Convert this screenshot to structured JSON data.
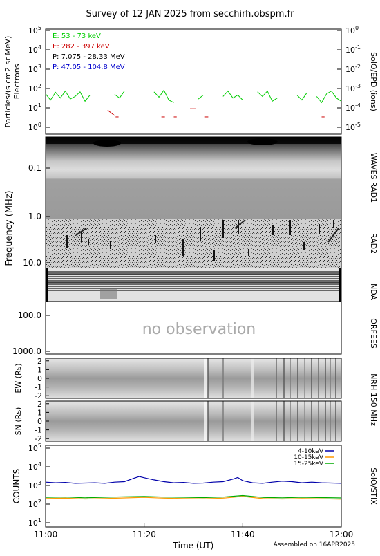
{
  "title": "Survey of 12 JAN 2025 from secchirh.obspm.fr",
  "footer": {
    "xlabel": "Time (UT)",
    "assembled": "Assembled on 16APR2025"
  },
  "x_ticks": [
    "11:00",
    "11:20",
    "11:40",
    "12:00"
  ],
  "colors": {
    "electron_low": "#00cc00",
    "electron_high": "#cc0000",
    "proton_low": "#000000",
    "proton_high": "#0000cc",
    "stix_4_10": "#0000aa",
    "stix_10_15": "#ff9900",
    "stix_15_25": "#00aa00"
  },
  "chart_data": [
    {
      "type": "line",
      "panel": "epd",
      "ylabel_lines": [
        "Particles/(s cm2 sr MeV)",
        "Electrons"
      ],
      "right_label": "SolO/EPD (ions)",
      "y_ticks_left": [
        "10^5",
        "10^4",
        "10^3",
        "10^2",
        "10^1",
        "10^0"
      ],
      "y_ticks_right": [
        "10^0",
        "10^-1",
        "10^-2",
        "10^-3",
        "10^-4",
        "10^-5"
      ],
      "legend": [
        "E: 53 - 73 keV",
        "E: 282 - 397 keV",
        "P: 7.075 - 28.33 MeV",
        "P: 47.05 - 104.8 MeV"
      ],
      "ylim": [
        1,
        100000
      ],
      "scale": "log",
      "series": [
        {
          "name": "E: 53 - 73 keV",
          "x_min": [
            0,
            1,
            2,
            3,
            4,
            5,
            6,
            7,
            8,
            9,
            10,
            11,
            12,
            13,
            14,
            15,
            16,
            17,
            18,
            19,
            20,
            21,
            22,
            23,
            24,
            25,
            26,
            27,
            28,
            29,
            30,
            31,
            32,
            33,
            34,
            35,
            36,
            37,
            38,
            39,
            40,
            41,
            42,
            43,
            44,
            45,
            46,
            47,
            48,
            49,
            50,
            51,
            52,
            53,
            54,
            55,
            56,
            57,
            58,
            59,
            60
          ],
          "values": [
            80,
            40,
            95,
            50,
            110,
            45,
            60,
            100,
            35,
            70,
            null,
            null,
            60,
            null,
            75,
            50,
            110,
            null,
            null,
            null,
            null,
            null,
            100,
            55,
            120,
            40,
            30,
            null,
            null,
            60,
            null,
            45,
            70,
            null,
            null,
            null,
            60,
            110,
            50,
            70,
            40,
            null,
            null,
            100,
            60,
            110,
            35,
            50,
            null,
            null,
            null,
            70,
            40,
            90,
            null,
            60,
            30,
            80,
            110,
            50,
            35
          ]
        },
        {
          "name": "E: 282 - 397 keV",
          "segments": [
            [
              12.6,
              14,
              12.7,
              7
            ],
            [
              14.2,
              14.8,
              6,
              6
            ],
            [
              23.5,
              24.2,
              6,
              6
            ],
            [
              26,
              26.6,
              6,
              6
            ],
            [
              29.3,
              30.5,
              15,
              15
            ],
            [
              32.2,
              33,
              6,
              6
            ],
            [
              56,
              56.6,
              6,
              6
            ]
          ]
        }
      ]
    },
    {
      "type": "heatmap",
      "panel": "radio",
      "ylabel": "Frequency (MHz)",
      "y_ticks": [
        "0.1",
        "1.0",
        "10.0",
        "100.0",
        "1000.0"
      ],
      "scale": "log",
      "right_labels": [
        "WAVES RAD1",
        "RAD2",
        "NDA",
        "ORFEES"
      ],
      "annotation": "no observation"
    },
    {
      "type": "heatmap",
      "panel": "nrh_ew",
      "ylabel": "EW (Rs)",
      "y_ticks": [
        "2",
        "1",
        "0",
        "-1",
        "-2"
      ],
      "ylim": [
        -2.3,
        2.3
      ],
      "right_label": "NRH 150 MHz"
    },
    {
      "type": "heatmap",
      "panel": "nrh_sn",
      "ylabel": "SN (Rs)",
      "y_ticks": [
        "2",
        "1",
        "0",
        "-1",
        "-2"
      ],
      "ylim": [
        -2.3,
        2.3
      ]
    },
    {
      "type": "line",
      "panel": "stix",
      "ylabel": "COUNTS",
      "right_label": "SolO/STIX",
      "y_ticks": [
        "10^5",
        "10^4",
        "10^3",
        "10^2",
        "10^1"
      ],
      "ylim": [
        10,
        100000
      ],
      "scale": "log",
      "legend": [
        "4-10keV",
        "10-15keV",
        "15-25keV"
      ],
      "series": [
        {
          "name": "4-10keV",
          "x_min": [
            0,
            2,
            4,
            6,
            8,
            10,
            12,
            14,
            16,
            18,
            19,
            20,
            22,
            24,
            26,
            28,
            30,
            32,
            34,
            36,
            38,
            39,
            40,
            42,
            44,
            46,
            48,
            50,
            52,
            54,
            56,
            58,
            60
          ],
          "values": [
            1500,
            1400,
            1450,
            1300,
            1350,
            1400,
            1300,
            1500,
            1600,
            2500,
            3000,
            2600,
            2000,
            1600,
            1400,
            1450,
            1300,
            1350,
            1500,
            1600,
            2200,
            2700,
            1800,
            1400,
            1300,
            1500,
            1700,
            1600,
            1400,
            1500,
            1400,
            1350,
            1300
          ]
        },
        {
          "name": "10-15keV",
          "x_min": [
            0,
            4,
            8,
            12,
            16,
            20,
            24,
            28,
            32,
            36,
            40,
            44,
            48,
            52,
            56,
            60
          ],
          "values": [
            200,
            210,
            190,
            200,
            215,
            230,
            210,
            200,
            195,
            210,
            260,
            200,
            190,
            200,
            195,
            185
          ]
        },
        {
          "name": "15-25keV",
          "x_min": [
            0,
            4,
            8,
            12,
            16,
            20,
            24,
            28,
            32,
            36,
            40,
            44,
            48,
            52,
            56,
            60
          ],
          "values": [
            230,
            240,
            220,
            235,
            250,
            260,
            240,
            235,
            225,
            240,
            290,
            230,
            220,
            235,
            225,
            215
          ]
        }
      ]
    }
  ]
}
